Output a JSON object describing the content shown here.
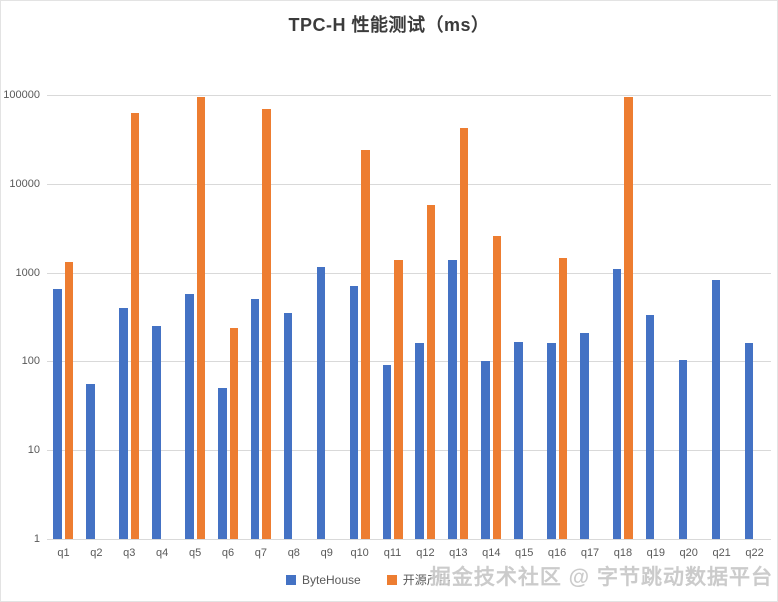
{
  "chart_data": {
    "type": "bar",
    "title": "TPC-H 性能测试（ms）",
    "categories": [
      "q1",
      "q2",
      "q3",
      "q4",
      "q5",
      "q6",
      "q7",
      "q8",
      "q9",
      "q10",
      "q11",
      "q12",
      "q13",
      "q14",
      "q15",
      "q16",
      "q17",
      "q18",
      "q19",
      "q20",
      "q21",
      "q22"
    ],
    "series": [
      {
        "name": "ByteHouse",
        "color": "#4472C4",
        "values": [
          650,
          55,
          400,
          250,
          580,
          50,
          500,
          350,
          1150,
          700,
          90,
          160,
          1400,
          100,
          165,
          160,
          210,
          1100,
          330,
          105,
          830,
          160
        ]
      },
      {
        "name": "开源产品",
        "color": "#ED7D31",
        "values": [
          1300,
          null,
          62000,
          null,
          95000,
          240,
          70000,
          null,
          null,
          24000,
          1400,
          5800,
          42000,
          2600,
          null,
          1450,
          null,
          95000,
          null,
          null,
          null,
          null
        ]
      }
    ],
    "xlabel": "",
    "ylabel": "",
    "y_axis": {
      "scale": "log",
      "ticks": [
        1,
        10,
        100,
        1000,
        10000,
        100000
      ],
      "min": 1,
      "max": 100000
    },
    "grid": true,
    "legend_position": "bottom"
  },
  "watermark": "掘金技术社区 @ 字节跳动数据平台"
}
